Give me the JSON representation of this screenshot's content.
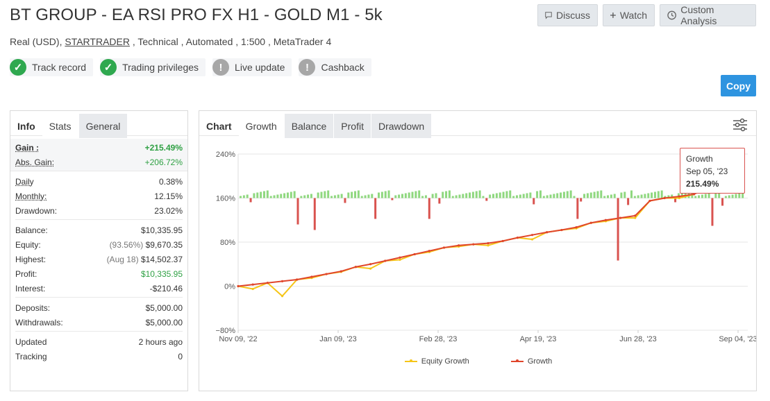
{
  "header": {
    "title": "BT GROUP - EA RSI PRO FX H1 - GOLD M1 - 5k",
    "subtitle_prefix": "Real (USD), ",
    "broker": "STARTRADER",
    "subtitle_suffix": " , Technical , Automated , 1:500 , MetaTrader 4",
    "buttons": {
      "discuss": "Discuss",
      "watch": "Watch",
      "custom_analysis": "Custom Analysis"
    },
    "badges": [
      {
        "label": "Track record",
        "status": "ok"
      },
      {
        "label": "Trading privileges",
        "status": "ok"
      },
      {
        "label": "Live update",
        "status": "warn"
      },
      {
        "label": "Cashback",
        "status": "warn"
      }
    ],
    "copy_label": "Copy"
  },
  "left_panel": {
    "tabs": [
      "Info",
      "Stats",
      "General"
    ],
    "gain": {
      "label": "Gain :",
      "value": "+215.49%"
    },
    "abs_gain": {
      "label": "Abs. Gain:",
      "value": "+206.72%"
    },
    "daily": {
      "label": "Daily",
      "value": "0.38%"
    },
    "monthly": {
      "label": "Monthly:",
      "value": "12.15%"
    },
    "drawdown": {
      "label": "Drawdown:",
      "value": "23.02%"
    },
    "balance": {
      "label": "Balance:",
      "value": "$10,335.95"
    },
    "equity": {
      "label": "Equity:",
      "pct": "(93.56%)",
      "value": "$9,670.35"
    },
    "highest": {
      "label": "Highest:",
      "date": "(Aug 18)",
      "value": "$14,502.37"
    },
    "profit": {
      "label": "Profit:",
      "value": "$10,335.95"
    },
    "interest": {
      "label": "Interest:",
      "value": "-$210.46"
    },
    "deposits": {
      "label": "Deposits:",
      "value": "$5,000.00"
    },
    "withdrawals": {
      "label": "Withdrawals:",
      "value": "$5,000.00"
    },
    "updated": {
      "label": "Updated",
      "value": "2 hours ago"
    },
    "tracking": {
      "label": "Tracking",
      "value": "0"
    }
  },
  "right_panel": {
    "tabs": [
      "Chart",
      "Growth",
      "Balance",
      "Profit",
      "Drawdown"
    ],
    "tooltip": {
      "title": "Growth",
      "date": "Sep 05, '23",
      "value": "215.49%"
    }
  },
  "colors": {
    "growth": "#e0452b",
    "equity": "#f5c518",
    "bar_pos": "#8fd87f",
    "bar_neg": "#d9534f",
    "accent": "#2e94e0"
  },
  "chart_data": {
    "type": "line",
    "title": "Growth",
    "x_ticks": [
      "Nov 09, '22",
      "Jan 09, '23",
      "Feb 28, '23",
      "Apr 19, '23",
      "Jun 28, '23",
      "Sep 04, '23"
    ],
    "y_ticks": [
      "240%",
      "160%",
      "80%",
      "0%",
      "−80%"
    ],
    "ylim": [
      -80,
      240
    ],
    "series": [
      {
        "name": "Growth",
        "values": [
          0,
          3,
          6,
          9,
          12,
          17,
          22,
          27,
          35,
          40,
          46,
          52,
          58,
          64,
          70,
          74,
          76,
          78,
          82,
          88,
          93,
          98,
          102,
          107,
          115,
          120,
          124,
          128,
          155,
          160,
          163,
          167,
          180,
          200,
          215.49
        ]
      },
      {
        "name": "Equity Growth",
        "values": [
          0,
          -5,
          6,
          -18,
          12,
          15,
          22,
          26,
          35,
          32,
          46,
          48,
          58,
          62,
          70,
          72,
          76,
          74,
          82,
          88,
          85,
          98,
          102,
          105,
          115,
          118,
          124,
          124,
          155,
          160,
          160,
          167,
          180,
          198,
          195
        ]
      }
    ],
    "legend": [
      "Equity Growth",
      "Growth"
    ]
  }
}
